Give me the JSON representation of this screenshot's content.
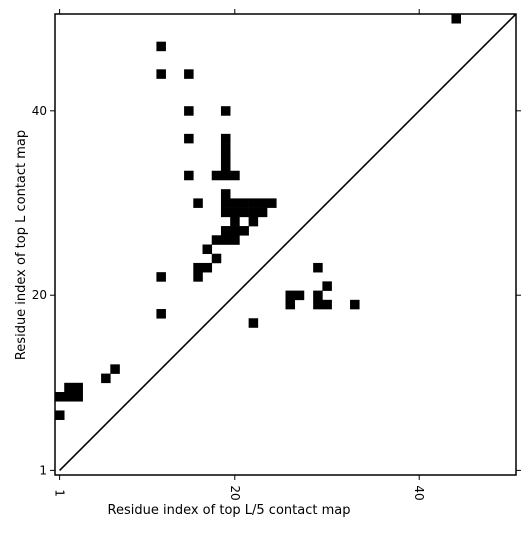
{
  "chart_data": {
    "type": "heatmap",
    "title": "",
    "xlabel": "Residue index of top L/5 contact map",
    "ylabel": "Residue index of top L contact map",
    "x_ticks": [
      "1",
      "20",
      "40"
    ],
    "y_ticks": [
      "1",
      "20",
      "40"
    ],
    "xlim": [
      0.5,
      50.5
    ],
    "ylim": [
      0.5,
      50.5
    ],
    "x_tick_values": [
      1,
      20,
      40
    ],
    "y_tick_values": [
      1,
      20,
      40
    ],
    "grid": false,
    "legend": "none",
    "diagonal_line": true,
    "cell_color": "#000000",
    "background_color": "#ffffff",
    "contacts": [
      [
        44,
        50
      ],
      [
        12,
        47
      ],
      [
        12,
        44
      ],
      [
        15,
        44
      ],
      [
        15,
        40
      ],
      [
        19,
        40
      ],
      [
        15,
        37
      ],
      [
        19,
        37
      ],
      [
        19,
        36
      ],
      [
        19,
        35
      ],
      [
        19,
        34
      ],
      [
        15,
        33
      ],
      [
        18,
        33
      ],
      [
        19,
        33
      ],
      [
        20,
        33
      ],
      [
        19,
        31
      ],
      [
        16,
        30
      ],
      [
        19,
        30
      ],
      [
        20,
        30
      ],
      [
        21,
        30
      ],
      [
        22,
        30
      ],
      [
        23,
        30
      ],
      [
        24,
        30
      ],
      [
        19,
        29
      ],
      [
        20,
        29
      ],
      [
        21,
        29
      ],
      [
        22,
        29
      ],
      [
        23,
        29
      ],
      [
        20,
        28
      ],
      [
        22,
        28
      ],
      [
        19,
        27
      ],
      [
        20,
        27
      ],
      [
        21,
        27
      ],
      [
        18,
        26
      ],
      [
        19,
        26
      ],
      [
        20,
        26
      ],
      [
        17,
        25
      ],
      [
        18,
        24
      ],
      [
        16,
        23
      ],
      [
        17,
        23
      ],
      [
        16,
        22
      ],
      [
        12,
        22
      ],
      [
        29,
        23
      ],
      [
        30,
        21
      ],
      [
        26,
        20
      ],
      [
        27,
        20
      ],
      [
        29,
        20
      ],
      [
        26,
        19
      ],
      [
        29,
        19
      ],
      [
        30,
        19
      ],
      [
        33,
        19
      ],
      [
        12,
        18
      ],
      [
        22,
        17
      ],
      [
        7,
        12
      ],
      [
        6,
        11
      ],
      [
        2,
        10
      ],
      [
        3,
        10
      ],
      [
        2,
        9
      ],
      [
        3,
        9
      ],
      [
        1,
        9
      ],
      [
        1,
        7
      ]
    ]
  }
}
